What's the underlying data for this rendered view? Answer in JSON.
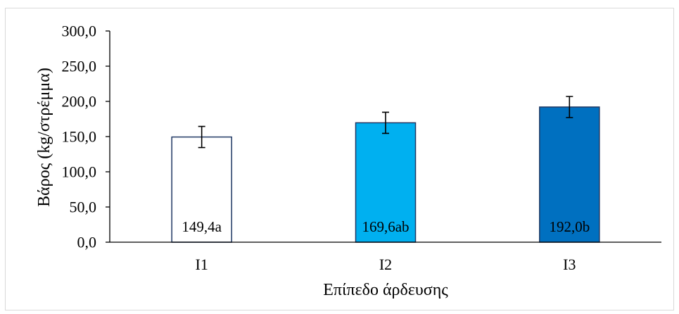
{
  "chart_data": {
    "type": "bar",
    "categories": [
      "I1",
      "I2",
      "I3"
    ],
    "values": [
      149.4,
      169.6,
      192.0
    ],
    "error": [
      15,
      15,
      15
    ],
    "data_labels": [
      "149,4a",
      "169,6ab",
      "192,0b"
    ],
    "bar_colors": [
      "#ffffff",
      "#00b0f0",
      "#0070c0"
    ],
    "bar_outline_color": "#1f3864",
    "xlabel": "Επίπεδο άρδευσης",
    "ylabel": "Βάρος (kg/στρέμμα)",
    "ylim": [
      0,
      300
    ],
    "ytick_values": [
      0,
      50,
      100,
      150,
      200,
      250,
      300
    ],
    "ytick_labels": [
      "0,0",
      "50,0",
      "100,0",
      "150,0",
      "200,0",
      "250,0",
      "300,0"
    ],
    "grid": false,
    "legend": false
  }
}
